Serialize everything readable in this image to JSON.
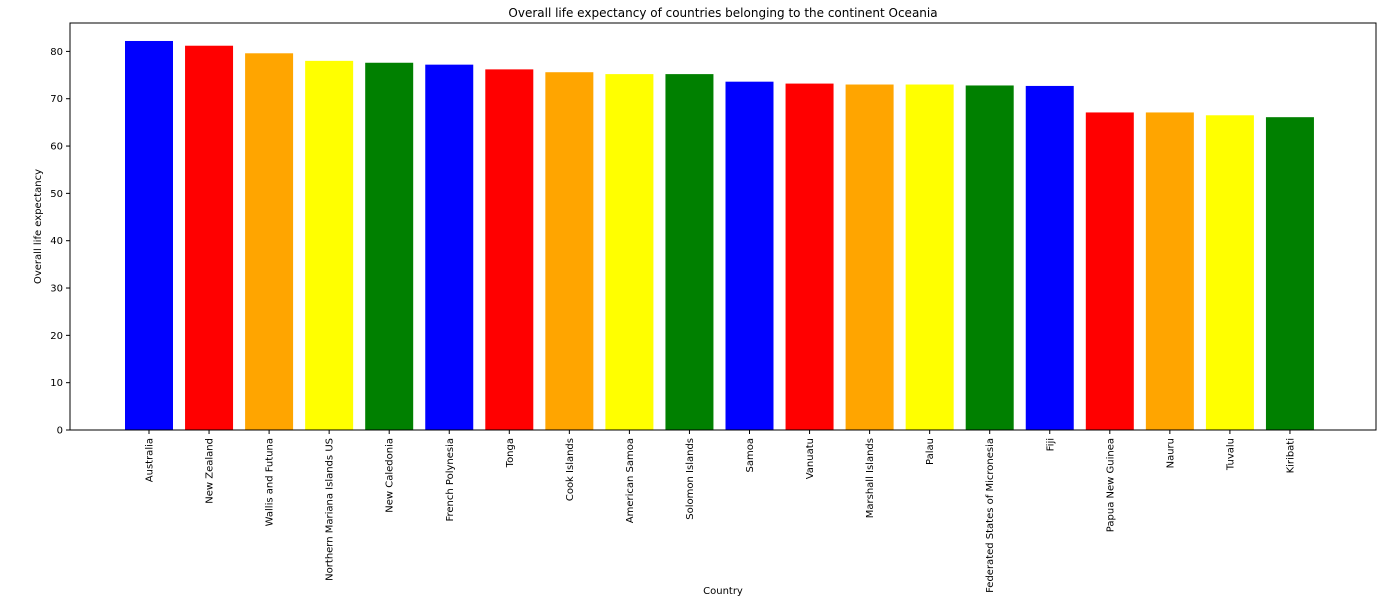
{
  "chart_data": {
    "type": "bar",
    "title": "Overall life expectancy of countries belonging to the continent Oceania",
    "xlabel": "Country",
    "ylabel": "Overall life expectancy",
    "ylim": [
      0,
      86
    ],
    "yticks": [
      0,
      10,
      20,
      30,
      40,
      50,
      60,
      70,
      80
    ],
    "grid": false,
    "legend": "none",
    "categories": [
      "Australia",
      "New Zealand",
      "Wallis and Futuna",
      "Northern Mariana Islands US",
      "New Caledonia",
      "French Polynesia",
      "Tonga",
      "Cook Islands",
      "American Samoa",
      "Solomon Islands",
      "Samoa",
      "Vanuatu",
      "Marshall Islands",
      "Palau",
      "Federated States of Micronesia",
      "Fiji",
      "Papua New Guinea",
      "Nauru",
      "Tuvalu",
      "Kiribati"
    ],
    "values": [
      82.2,
      81.2,
      79.6,
      78.0,
      77.6,
      77.2,
      76.2,
      75.6,
      75.2,
      75.2,
      73.6,
      73.2,
      73.0,
      73.0,
      72.8,
      72.7,
      67.1,
      67.1,
      66.5,
      66.1
    ],
    "colors": [
      "#0000ff",
      "#ff0000",
      "#ffa500",
      "#ffff00",
      "#008000"
    ]
  }
}
